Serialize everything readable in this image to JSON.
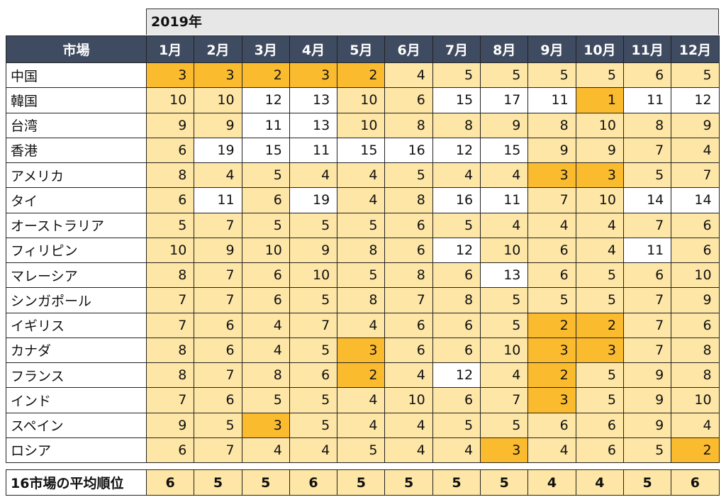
{
  "year_header": "2019年",
  "market_header": "市場",
  "months": [
    "1月",
    "2月",
    "3月",
    "4月",
    "5月",
    "6月",
    "7月",
    "8月",
    "9月",
    "10月",
    "11月",
    "12月"
  ],
  "colors": {
    "header_bg": "#3f4b61",
    "top3": "#fbbb2f",
    "top10": "#fee6a6",
    "other": "#ffffff"
  },
  "rows": [
    {
      "market": "中国",
      "values": [
        3,
        3,
        2,
        3,
        2,
        4,
        5,
        5,
        5,
        5,
        6,
        5
      ]
    },
    {
      "market": "韓国",
      "values": [
        10,
        10,
        12,
        13,
        10,
        6,
        15,
        17,
        11,
        1,
        11,
        12
      ]
    },
    {
      "market": "台湾",
      "values": [
        9,
        9,
        11,
        13,
        10,
        8,
        8,
        9,
        8,
        10,
        8,
        9
      ]
    },
    {
      "market": "香港",
      "values": [
        6,
        19,
        15,
        11,
        15,
        16,
        12,
        15,
        9,
        9,
        7,
        4
      ]
    },
    {
      "market": "アメリカ",
      "values": [
        8,
        4,
        5,
        4,
        4,
        5,
        4,
        4,
        3,
        3,
        5,
        7
      ]
    },
    {
      "market": "タイ",
      "values": [
        6,
        11,
        6,
        19,
        4,
        8,
        16,
        11,
        7,
        10,
        14,
        14
      ]
    },
    {
      "market": "オーストラリア",
      "values": [
        5,
        7,
        5,
        5,
        5,
        6,
        5,
        4,
        4,
        4,
        7,
        6
      ]
    },
    {
      "market": "フィリピン",
      "values": [
        10,
        9,
        10,
        9,
        8,
        6,
        12,
        10,
        6,
        4,
        11,
        6
      ]
    },
    {
      "market": "マレーシア",
      "values": [
        8,
        7,
        6,
        10,
        5,
        8,
        6,
        13,
        6,
        5,
        6,
        10
      ]
    },
    {
      "market": "シンガポール",
      "values": [
        7,
        7,
        6,
        5,
        8,
        7,
        8,
        5,
        5,
        5,
        7,
        9
      ]
    },
    {
      "market": "イギリス",
      "values": [
        7,
        6,
        4,
        7,
        4,
        6,
        6,
        5,
        2,
        2,
        7,
        6
      ]
    },
    {
      "market": "カナダ",
      "values": [
        8,
        6,
        4,
        5,
        3,
        6,
        6,
        10,
        3,
        3,
        7,
        8
      ]
    },
    {
      "market": "フランス",
      "values": [
        8,
        7,
        8,
        6,
        2,
        4,
        12,
        4,
        2,
        5,
        9,
        8
      ]
    },
    {
      "market": "インド",
      "values": [
        7,
        6,
        5,
        5,
        4,
        10,
        6,
        7,
        3,
        5,
        9,
        10
      ]
    },
    {
      "market": "スペイン",
      "values": [
        9,
        5,
        3,
        5,
        4,
        4,
        5,
        5,
        6,
        6,
        9,
        4
      ]
    },
    {
      "market": "ロシア",
      "values": [
        6,
        7,
        4,
        4,
        5,
        4,
        4,
        3,
        4,
        6,
        5,
        2
      ]
    }
  ],
  "summary": {
    "label": "16市場の平均順位",
    "values": [
      6,
      5,
      5,
      6,
      5,
      5,
      5,
      5,
      4,
      4,
      5,
      6
    ]
  }
}
